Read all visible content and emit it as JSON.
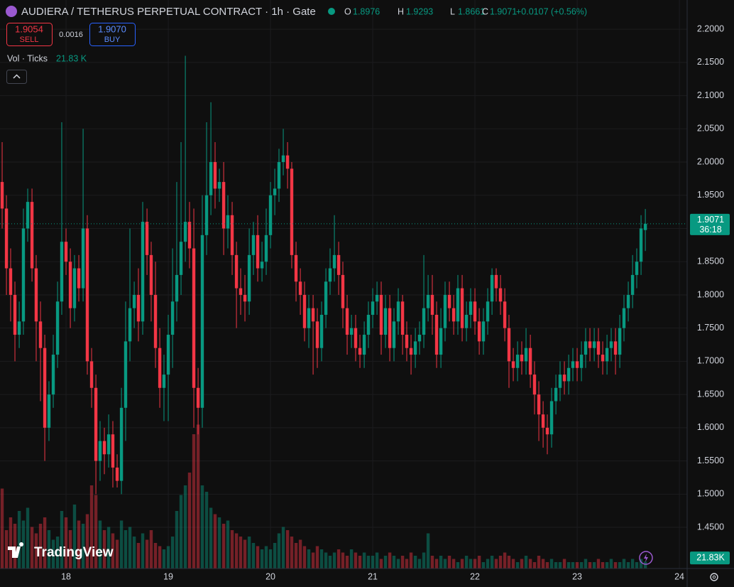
{
  "header": {
    "symbol": "AUDIERA / TETHERUS PERPETUAL CONTRACT · 1h · Gate",
    "o": "O",
    "h": "H",
    "l": "L",
    "c": "C",
    "change": "+0.0107 (+0.56%)",
    "sell_price": "1.9054",
    "sell": "SELL",
    "spread": "0.0016",
    "buy_price": "1.9070",
    "buy": "BUY",
    "volume_title": "Vol · Ticks",
    "volume_value": "21.83 K",
    "countdown": "36:18",
    "volume_tag": "21.83K",
    "watermark": "TradingView"
  },
  "chart_data": {
    "type": "candlestick",
    "up_color": "#089981",
    "down_color": "#f23645",
    "grid": true,
    "xlim": [
      17.354,
      24.076
    ],
    "xticks": [
      18,
      19,
      20,
      21,
      22,
      23,
      24
    ],
    "ylim": [
      1.388,
      2.244
    ],
    "yticks": [
      {
        "value": 1.45,
        "label": "1.4500"
      },
      {
        "value": 1.5,
        "label": "1.5000"
      },
      {
        "value": 1.55,
        "label": "1.5500"
      },
      {
        "value": 1.6,
        "label": "1.6000"
      },
      {
        "value": 1.65,
        "label": "1.6500"
      },
      {
        "value": 1.7,
        "label": "1.7000"
      },
      {
        "value": 1.75,
        "label": "1.7500"
      },
      {
        "value": 1.8,
        "label": "1.8000"
      },
      {
        "value": 1.85,
        "label": "1.8500"
      },
      {
        "value": 1.9,
        "label": "1.9000"
      },
      {
        "value": 1.95,
        "label": "1.9500"
      },
      {
        "value": 2.0,
        "label": "2.0000"
      },
      {
        "value": 2.05,
        "label": "2.0500"
      },
      {
        "value": 2.1,
        "label": "2.1000"
      },
      {
        "value": 2.15,
        "label": "2.1500"
      },
      {
        "value": 2.2,
        "label": "2.2000"
      }
    ],
    "volume_ylim": [
      0,
      400
    ],
    "x": [
      17.375,
      17.417,
      17.458,
      17.5,
      17.542,
      17.583,
      17.625,
      17.667,
      17.708,
      17.75,
      17.792,
      17.833,
      17.875,
      17.917,
      17.958,
      18,
      18.042,
      18.083,
      18.125,
      18.167,
      18.208,
      18.25,
      18.292,
      18.333,
      18.375,
      18.417,
      18.458,
      18.5,
      18.542,
      18.583,
      18.625,
      18.667,
      18.708,
      18.75,
      18.792,
      18.833,
      18.875,
      18.917,
      18.958,
      19,
      19.042,
      19.083,
      19.125,
      19.167,
      19.208,
      19.25,
      19.292,
      19.333,
      19.375,
      19.417,
      19.458,
      19.5,
      19.542,
      19.583,
      19.625,
      19.667,
      19.708,
      19.75,
      19.792,
      19.833,
      19.875,
      19.917,
      19.958,
      20,
      20.042,
      20.083,
      20.125,
      20.167,
      20.208,
      20.25,
      20.292,
      20.333,
      20.375,
      20.417,
      20.458,
      20.5,
      20.542,
      20.583,
      20.625,
      20.667,
      20.708,
      20.75,
      20.792,
      20.833,
      20.875,
      20.917,
      20.958,
      21,
      21.042,
      21.083,
      21.125,
      21.167,
      21.208,
      21.25,
      21.292,
      21.333,
      21.375,
      21.417,
      21.458,
      21.5,
      21.542,
      21.583,
      21.625,
      21.667,
      21.708,
      21.75,
      21.792,
      21.833,
      21.875,
      21.917,
      21.958,
      22,
      22.042,
      22.083,
      22.125,
      22.167,
      22.208,
      22.25,
      22.292,
      22.333,
      22.375,
      22.417,
      22.458,
      22.5,
      22.542,
      22.583,
      22.625,
      22.667,
      22.708,
      22.75,
      22.792,
      22.833,
      22.875,
      22.917,
      22.958,
      23,
      23.042,
      23.083,
      23.125,
      23.167,
      23.208,
      23.25,
      23.292,
      23.333,
      23.375,
      23.417,
      23.458,
      23.5,
      23.542,
      23.583,
      23.625,
      23.667
    ],
    "open": [
      1.97,
      1.93,
      1.84,
      1.8,
      1.74,
      1.76,
      1.9,
      1.94,
      1.84,
      1.76,
      1.72,
      1.6,
      1.65,
      1.71,
      1.79,
      1.88,
      1.85,
      1.78,
      1.84,
      1.81,
      1.9,
      1.7,
      1.66,
      1.55,
      1.58,
      1.56,
      1.59,
      1.54,
      1.52,
      1.63,
      1.73,
      1.78,
      1.8,
      1.76,
      1.91,
      1.86,
      1.8,
      1.72,
      1.66,
      1.68,
      1.74,
      1.79,
      1.83,
      1.88,
      1.91,
      1.87,
      1.66,
      1.63,
      1.89,
      1.95,
      2.0,
      1.96,
      1.97,
      1.9,
      1.92,
      1.86,
      1.81,
      1.8,
      1.79,
      1.86,
      1.89,
      1.84,
      1.85,
      1.89,
      1.95,
      1.96,
      2.0,
      2.01,
      1.99,
      1.86,
      1.82,
      1.8,
      1.75,
      1.78,
      1.76,
      1.72,
      1.77,
      1.82,
      1.84,
      1.86,
      1.83,
      1.78,
      1.74,
      1.75,
      1.72,
      1.71,
      1.74,
      1.77,
      1.79,
      1.8,
      1.74,
      1.78,
      1.72,
      1.76,
      1.79,
      1.74,
      1.72,
      1.71,
      1.73,
      1.74,
      1.78,
      1.8,
      1.77,
      1.71,
      1.75,
      1.8,
      1.78,
      1.76,
      1.81,
      1.75,
      1.77,
      1.79,
      1.76,
      1.73,
      1.76,
      1.79,
      1.83,
      1.81,
      1.79,
      1.75,
      1.7,
      1.69,
      1.71,
      1.7,
      1.72,
      1.68,
      1.65,
      1.62,
      1.6,
      1.59,
      1.64,
      1.66,
      1.68,
      1.67,
      1.69,
      1.7,
      1.69,
      1.71,
      1.73,
      1.72,
      1.73,
      1.71,
      1.7,
      1.72,
      1.73,
      1.71,
      1.75,
      1.78,
      1.8,
      1.83,
      1.85,
      1.8976
    ],
    "high": [
      2.03,
      1.95,
      1.87,
      1.82,
      1.79,
      1.93,
      1.96,
      1.96,
      1.86,
      1.79,
      1.74,
      1.67,
      1.74,
      1.82,
      2.06,
      1.9,
      1.87,
      1.86,
      1.86,
      2.05,
      1.92,
      1.72,
      1.68,
      1.61,
      1.6,
      1.62,
      1.61,
      1.56,
      1.66,
      1.79,
      1.9,
      1.82,
      1.84,
      1.94,
      1.93,
      1.88,
      1.85,
      1.75,
      1.71,
      1.77,
      1.87,
      1.97,
      2.03,
      2.16,
      1.94,
      1.93,
      1.69,
      1.95,
      2.06,
      2.09,
      2.03,
      1.99,
      2.0,
      1.95,
      1.94,
      1.88,
      1.84,
      1.83,
      1.9,
      1.91,
      1.92,
      1.88,
      1.93,
      1.97,
      1.99,
      2.02,
      2.05,
      2.03,
      2.0,
      1.88,
      1.84,
      1.82,
      1.8,
      1.8,
      1.78,
      1.79,
      1.84,
      1.87,
      1.92,
      1.88,
      1.85,
      1.8,
      1.77,
      1.77,
      1.74,
      1.76,
      1.79,
      1.81,
      1.82,
      1.82,
      1.8,
      1.8,
      1.78,
      1.81,
      1.8,
      1.76,
      1.74,
      1.75,
      1.76,
      1.86,
      1.83,
      1.83,
      1.79,
      1.78,
      1.82,
      1.82,
      1.8,
      1.83,
      1.83,
      1.79,
      1.81,
      1.81,
      1.78,
      1.78,
      1.81,
      1.84,
      1.84,
      1.83,
      1.81,
      1.77,
      1.72,
      1.73,
      1.73,
      1.75,
      1.74,
      1.7,
      1.67,
      1.64,
      1.62,
      1.66,
      1.68,
      1.7,
      1.7,
      1.71,
      1.72,
      1.72,
      1.73,
      1.75,
      1.75,
      1.75,
      1.75,
      1.73,
      1.74,
      1.75,
      1.75,
      1.77,
      1.8,
      1.82,
      1.86,
      1.87,
      1.92,
      1.9293
    ],
    "low": [
      1.9,
      1.8,
      1.76,
      1.7,
      1.72,
      1.74,
      1.88,
      1.82,
      1.7,
      1.64,
      1.55,
      1.58,
      1.63,
      1.69,
      1.77,
      1.83,
      1.75,
      1.76,
      1.79,
      1.79,
      1.68,
      1.63,
      1.5,
      1.52,
      1.53,
      1.54,
      1.51,
      1.51,
      1.5,
      1.58,
      1.7,
      1.75,
      1.73,
      1.74,
      1.83,
      1.76,
      1.69,
      1.63,
      1.61,
      1.61,
      1.69,
      1.76,
      1.8,
      1.85,
      1.84,
      1.6,
      1.59,
      1.6,
      1.86,
      1.92,
      1.93,
      1.94,
      1.86,
      1.87,
      1.83,
      1.75,
      1.77,
      1.76,
      1.77,
      1.83,
      1.82,
      1.82,
      1.83,
      1.87,
      1.92,
      1.94,
      1.98,
      1.96,
      1.84,
      1.79,
      1.77,
      1.73,
      1.72,
      1.68,
      1.69,
      1.7,
      1.75,
      1.8,
      1.82,
      1.8,
      1.75,
      1.71,
      1.72,
      1.7,
      1.69,
      1.69,
      1.72,
      1.75,
      1.77,
      1.71,
      1.72,
      1.7,
      1.7,
      1.74,
      1.71,
      1.7,
      1.68,
      1.69,
      1.71,
      1.72,
      1.76,
      1.74,
      1.69,
      1.69,
      1.73,
      1.76,
      1.74,
      1.74,
      1.73,
      1.73,
      1.75,
      1.74,
      1.71,
      1.71,
      1.74,
      1.77,
      1.79,
      1.77,
      1.73,
      1.66,
      1.67,
      1.67,
      1.68,
      1.68,
      1.66,
      1.62,
      1.58,
      1.57,
      1.56,
      1.57,
      1.62,
      1.64,
      1.65,
      1.65,
      1.67,
      1.67,
      1.67,
      1.69,
      1.7,
      1.7,
      1.69,
      1.68,
      1.68,
      1.7,
      1.68,
      1.69,
      1.73,
      1.76,
      1.78,
      1.81,
      1.83,
      1.8661
    ],
    "close": [
      1.93,
      1.84,
      1.8,
      1.74,
      1.76,
      1.9,
      1.94,
      1.84,
      1.76,
      1.72,
      1.6,
      1.65,
      1.71,
      1.79,
      1.88,
      1.85,
      1.78,
      1.84,
      1.81,
      1.9,
      1.7,
      1.66,
      1.55,
      1.58,
      1.56,
      1.59,
      1.54,
      1.52,
      1.63,
      1.73,
      1.78,
      1.8,
      1.76,
      1.91,
      1.86,
      1.8,
      1.72,
      1.66,
      1.68,
      1.74,
      1.79,
      1.83,
      1.88,
      1.91,
      1.87,
      1.66,
      1.63,
      1.89,
      1.95,
      2.0,
      1.96,
      1.97,
      1.9,
      1.92,
      1.86,
      1.81,
      1.8,
      1.79,
      1.86,
      1.89,
      1.84,
      1.85,
      1.89,
      1.95,
      1.96,
      2.0,
      2.01,
      1.99,
      1.86,
      1.82,
      1.8,
      1.75,
      1.78,
      1.76,
      1.72,
      1.77,
      1.82,
      1.84,
      1.86,
      1.83,
      1.78,
      1.74,
      1.75,
      1.72,
      1.71,
      1.74,
      1.77,
      1.79,
      1.8,
      1.74,
      1.78,
      1.72,
      1.76,
      1.79,
      1.74,
      1.72,
      1.71,
      1.73,
      1.74,
      1.78,
      1.8,
      1.77,
      1.71,
      1.75,
      1.8,
      1.78,
      1.76,
      1.81,
      1.75,
      1.77,
      1.79,
      1.76,
      1.73,
      1.76,
      1.79,
      1.83,
      1.81,
      1.79,
      1.75,
      1.7,
      1.69,
      1.71,
      1.7,
      1.72,
      1.68,
      1.65,
      1.62,
      1.6,
      1.59,
      1.64,
      1.66,
      1.68,
      1.67,
      1.69,
      1.7,
      1.69,
      1.71,
      1.73,
      1.72,
      1.73,
      1.71,
      1.7,
      1.72,
      1.73,
      1.71,
      1.75,
      1.78,
      1.8,
      1.83,
      1.85,
      1.9,
      1.9071
    ],
    "volume": [
      250,
      120,
      160,
      140,
      180,
      150,
      190,
      130,
      110,
      140,
      160,
      120,
      90,
      100,
      180,
      160,
      120,
      200,
      150,
      140,
      170,
      260,
      230,
      150,
      120,
      130,
      110,
      90,
      150,
      120,
      130,
      100,
      80,
      110,
      90,
      120,
      80,
      70,
      60,
      70,
      100,
      180,
      230,
      260,
      300,
      420,
      450,
      260,
      240,
      190,
      170,
      160,
      140,
      150,
      120,
      110,
      100,
      90,
      100,
      80,
      70,
      60,
      70,
      60,
      80,
      110,
      130,
      120,
      100,
      80,
      90,
      70,
      60,
      50,
      70,
      60,
      50,
      40,
      50,
      60,
      50,
      40,
      60,
      50,
      40,
      50,
      40,
      40,
      50,
      30,
      40,
      50,
      40,
      30,
      40,
      30,
      50,
      40,
      30,
      50,
      110,
      40,
      30,
      40,
      30,
      40,
      30,
      20,
      30,
      40,
      30,
      30,
      40,
      20,
      30,
      40,
      30,
      40,
      50,
      40,
      30,
      20,
      30,
      40,
      30,
      20,
      40,
      30,
      20,
      30,
      20,
      20,
      30,
      20,
      20,
      20,
      20,
      30,
      20,
      20,
      30,
      20,
      20,
      30,
      20,
      20,
      30,
      20,
      30,
      20,
      30,
      21.83
    ]
  }
}
